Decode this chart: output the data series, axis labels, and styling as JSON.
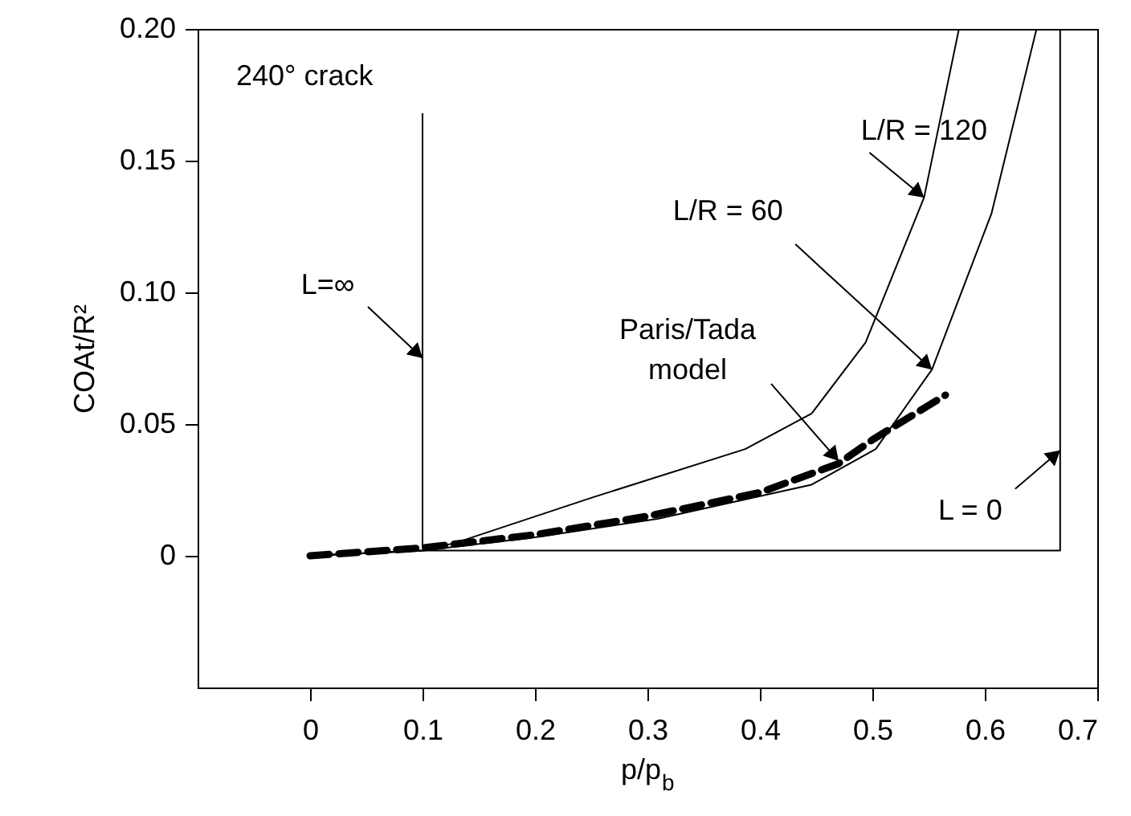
{
  "chart_data": {
    "type": "line",
    "xlabel": "p/p$_{b}$",
    "ylabel": "COAt/R²",
    "xlim": [
      -0.1,
      0.7
    ],
    "ylim": [
      -0.05,
      0.2
    ],
    "xticks": [
      0,
      0.1,
      0.2,
      0.3,
      0.4,
      0.5,
      0.6,
      0.7
    ],
    "yticks": [
      0,
      0.05,
      {
        "value": 0.1,
        "label": "0.10"
      },
      0.15,
      {
        "value": 0.2,
        "label": "0.20"
      }
    ],
    "grid": false,
    "marker": "none",
    "series": [
      {
        "color": "#000000",
        "line_style": "solid",
        "x": [
          0.1,
          0.1
        ],
        "values": [
          0.003,
          0.168
        ]
      },
      {
        "color": "#000000",
        "line_style": "solid",
        "x": [
          0,
          0.1,
          0.667,
          0.667
        ],
        "values": [
          0,
          0.002,
          0.002,
          0.2
        ]
      },
      {
        "color": "#000000",
        "line_style": "solid",
        "x": [
          0,
          0.1,
          0.13,
          0.25,
          0.387,
          0.446,
          0.494,
          0.546,
          0.577
        ],
        "values": [
          0,
          0.002,
          0.005,
          0.022,
          0.0405,
          0.054,
          0.081,
          0.136,
          0.2
        ]
      },
      {
        "color": "#000000",
        "line_style": "solid",
        "x": [
          0,
          0.1,
          0.2,
          0.309,
          0.446,
          0.503,
          0.553,
          0.606,
          0.646
        ],
        "values": [
          0,
          0.002,
          0.007,
          0.014,
          0.027,
          0.0405,
          0.0707,
          0.13,
          0.2
        ]
      },
      {
        "color": "#000000",
        "line_style": "dashed",
        "x": [
          0,
          0.1,
          0.2,
          0.3,
          0.4,
          0.47,
          0.5,
          0.565
        ],
        "values": [
          0,
          0.003,
          0.008,
          0.015,
          0.024,
          0.035,
          0.044,
          0.061
        ]
      }
    ],
    "annotations": [
      "240° crack",
      {
        "text": "L=∞",
        "x": 0.1,
        "y": 0.075
      },
      {
        "text": "L/R = 120",
        "x": 0.546,
        "y": 0.136
      },
      {
        "text": "L/R = 60",
        "x": 0.553,
        "y": 0.0707
      },
      {
        "text": "Paris/Tada model",
        "x": 0.47,
        "y": 0.036
      },
      {
        "text": "L = 0",
        "x": 0.667,
        "y": 0.04
      }
    ]
  }
}
